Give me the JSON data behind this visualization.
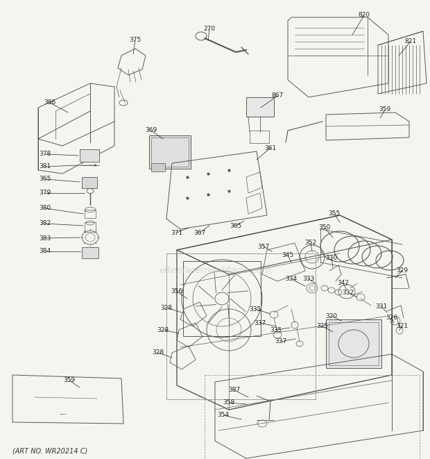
{
  "bg_color": "#f5f5f0",
  "art_no": "(ART NO. WR20214 C)",
  "watermark": "eReplacementParts.com",
  "fig_width": 6.2,
  "fig_height": 6.61,
  "dpi": 100,
  "line_color": "#555555",
  "text_color": "#222222",
  "label_fontsize": 6.5
}
